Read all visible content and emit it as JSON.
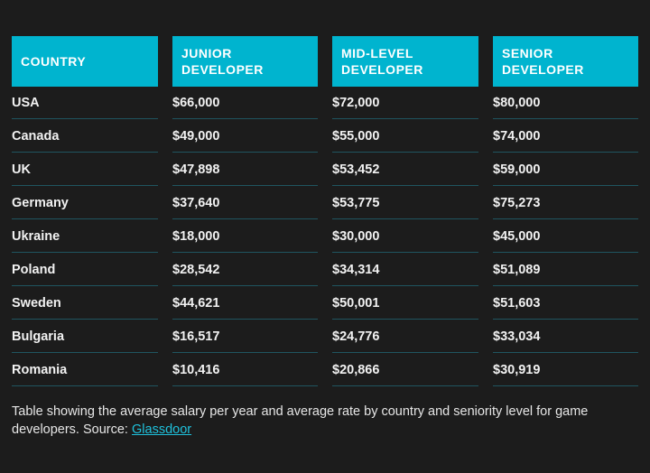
{
  "table": {
    "header": [
      "COUNTRY",
      "JUNIOR DEVELOPER",
      "MID-LEVEL DEVELOPER",
      "SENIOR DEVELOPER"
    ],
    "rows": [
      [
        "USA",
        "$66,000",
        "$72,000",
        "$80,000"
      ],
      [
        "Canada",
        "$49,000",
        "$55,000",
        "$74,000"
      ],
      [
        "UK",
        "$47,898",
        "$53,452",
        "$59,000"
      ],
      [
        "Germany",
        "$37,640",
        "$53,775",
        "$75,273"
      ],
      [
        "Ukraine",
        "$18,000",
        "$30,000",
        "$45,000"
      ],
      [
        "Poland",
        "$28,542",
        "$34,314",
        "$51,089"
      ],
      [
        "Sweden",
        "$44,621",
        "$50,001",
        "$51,603"
      ],
      [
        "Bulgaria",
        "$16,517",
        "$24,776",
        "$33,034"
      ],
      [
        "Romania",
        "$10,416",
        "$20,866",
        "$30,919"
      ]
    ]
  },
  "caption": {
    "text": "Table showing the average salary per year and average rate by country and seniority level for game developers. Source: ",
    "link": "Glassdoor"
  }
}
